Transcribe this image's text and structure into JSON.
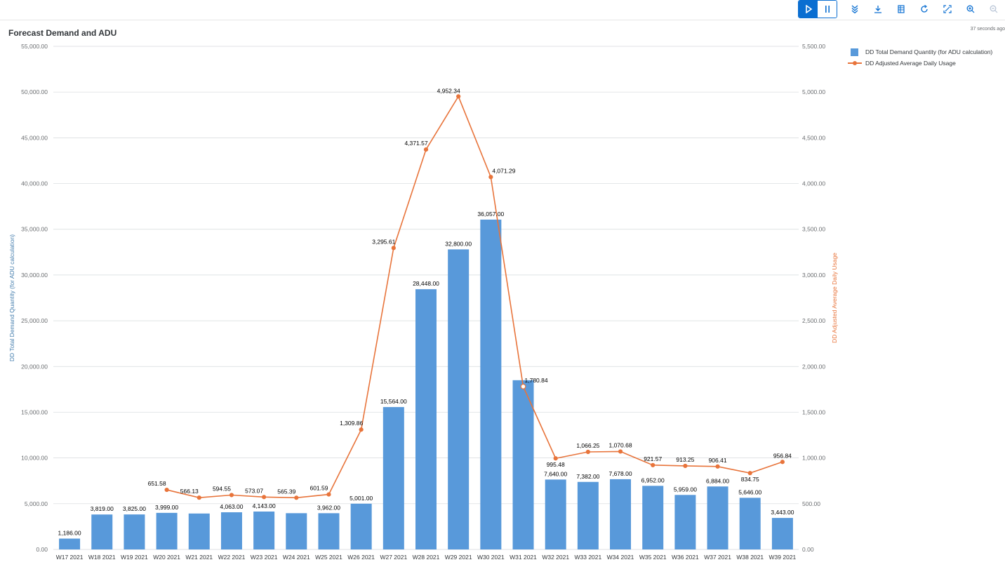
{
  "title": "Forecast Demand and ADU",
  "timestamp": "37 seconds ago",
  "toolbar": {
    "icons": [
      "play-icon",
      "pause-icon",
      "expand-all-icon",
      "download-icon",
      "table-icon",
      "refresh-icon",
      "fullscreen-icon",
      "zoom-in-icon",
      "zoom-out-icon"
    ]
  },
  "legend": {
    "bar_label": "DD Total Demand Quantity (for ADU calculation)",
    "line_label": "DD Adjusted Average Daily Usage"
  },
  "colors": {
    "bar": "#5899da",
    "line": "#e8743b",
    "active_button": "#0a6ed1"
  },
  "chart_data": {
    "type": "bar",
    "title": "Forecast Demand and ADU",
    "categories": [
      "W17 2021",
      "W18 2021",
      "W19 2021",
      "W20 2021",
      "W21 2021",
      "W22 2021",
      "W23 2021",
      "W24 2021",
      "W25 2021",
      "W26 2021",
      "W27 2021",
      "W28 2021",
      "W29 2021",
      "W30 2021",
      "W31 2021",
      "W32 2021",
      "W33 2021",
      "W34 2021",
      "W35 2021",
      "W36 2021",
      "W37 2021",
      "W38 2021",
      "W39 2021"
    ],
    "ylabel": "DD Total Demand Quantity (for ADU calculation)",
    "y2label": "DD Adjusted Average Daily Usage",
    "ylim": [
      0,
      55000
    ],
    "y2lim": [
      0,
      5500
    ],
    "yticks": [
      "0.00",
      "5,000.00",
      "10,000.00",
      "15,000.00",
      "20,000.00",
      "25,000.00",
      "30,000.00",
      "35,000.00",
      "40,000.00",
      "45,000.00",
      "50,000.00",
      "55,000.00"
    ],
    "y2ticks": [
      "0.00",
      "500.00",
      "1,000.00",
      "1,500.00",
      "2,000.00",
      "2,500.00",
      "3,000.00",
      "3,500.00",
      "4,000.00",
      "4,500.00",
      "5,000.00",
      "5,500.00"
    ],
    "grid": true,
    "legend_position": "top-right",
    "series": [
      {
        "name": "DD Total Demand Quantity (for ADU calculation)",
        "type": "bar",
        "axis": "left",
        "values": [
          1186,
          3819,
          3825,
          3999,
          3929,
          4063,
          4143,
          3964,
          3962,
          5001,
          15564,
          28448,
          32800,
          36057,
          18500,
          7640,
          7382,
          7678,
          6952,
          5959,
          6884,
          5646,
          3443
        ],
        "labels": [
          "1,186.00",
          "3,819.00",
          "3,825.00",
          "3,999.00",
          "",
          "4,063.00",
          "4,143.00",
          "",
          "3,962.00",
          "5,001.00",
          "15,564.00",
          "28,448.00",
          "32,800.00",
          "36,057.00",
          "",
          "7,640.00",
          "7,382.00",
          "7,678.00",
          "6,952.00",
          "5,959.00",
          "6,884.00",
          "5,646.00",
          "3,443.00"
        ]
      },
      {
        "name": "DD Adjusted Average Daily Usage",
        "type": "line",
        "axis": "right",
        "values": [
          null,
          null,
          null,
          651.58,
          566.13,
          594.55,
          573.07,
          565.39,
          601.59,
          1309.86,
          3295.61,
          4371.57,
          4952.34,
          4071.29,
          1780.84,
          995.48,
          1066.25,
          1070.68,
          921.57,
          913.25,
          906.41,
          834.75,
          956.84
        ],
        "labels": [
          "",
          "",
          "",
          "651.58",
          "566.13",
          "594.55",
          "573.07",
          "565.39",
          "601.59",
          "1,309.86",
          "3,295.61",
          "4,371.57",
          "4,952.34",
          "4,071.29",
          "1,780.84",
          "995.48",
          "1,066.25",
          "1,070.68",
          "921.57",
          "913.25",
          "906.41",
          "834.75",
          "956.84"
        ]
      }
    ]
  }
}
